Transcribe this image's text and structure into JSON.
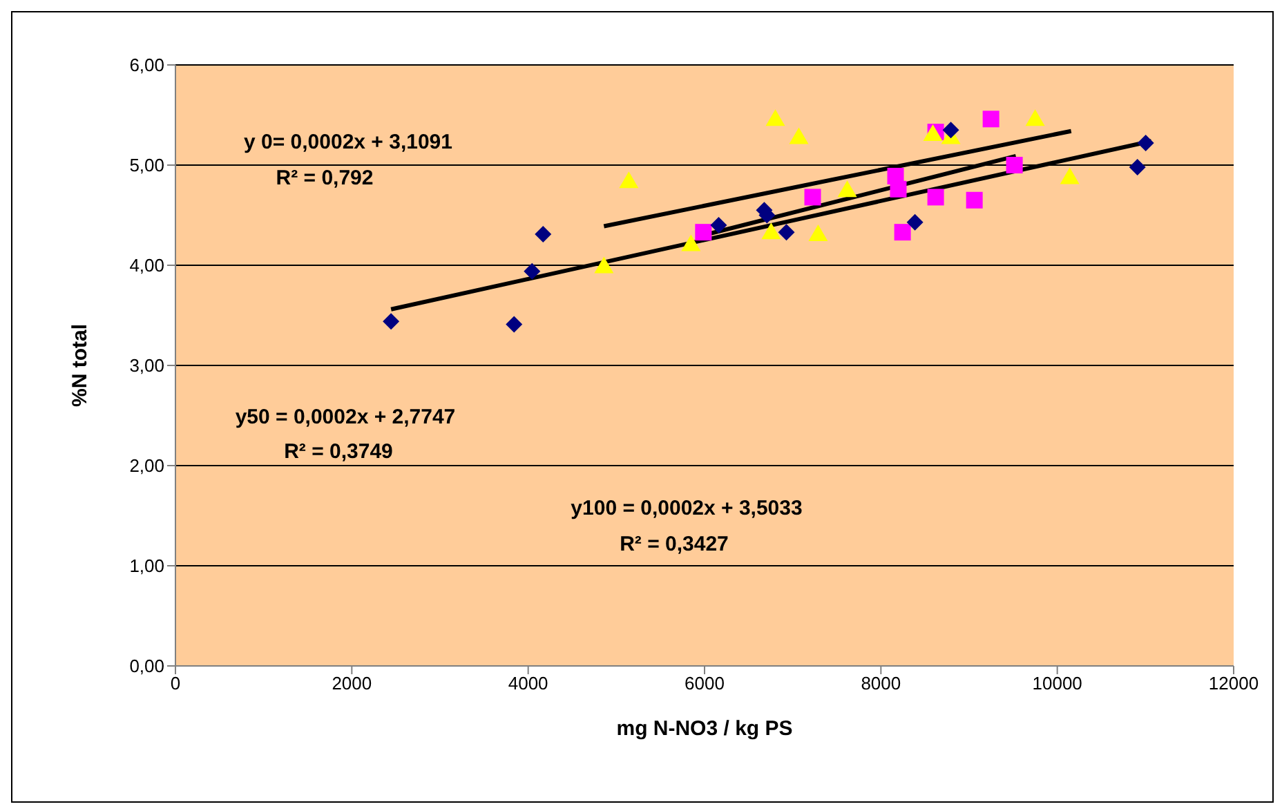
{
  "chart_data": {
    "type": "scatter",
    "xlabel": "mg N-NO3 / kg PS",
    "ylabel": "%N total",
    "xlim": [
      0,
      12000
    ],
    "xticks": [
      0,
      2000,
      4000,
      6000,
      8000,
      10000,
      12000
    ],
    "ylim": [
      0,
      6
    ],
    "yticks": [
      {
        "value": 0,
        "label": "0,00"
      },
      {
        "value": 1,
        "label": "1,00"
      },
      {
        "value": 2,
        "label": "2,00"
      },
      {
        "value": 3,
        "label": "3,00"
      },
      {
        "value": 4,
        "label": "4,00"
      },
      {
        "value": 5,
        "label": "5,00"
      },
      {
        "value": 6,
        "label": "6,00"
      }
    ],
    "grid": "y",
    "annotations": [
      "y 0= 0,0002x + 3,1091",
      "R² = 0,792",
      "y50 = 0,0002x + 2,7747",
      "R² = 0,3749",
      "y100 = 0,0002x + 3,5033",
      "R² = 0,3427"
    ],
    "series": [
      {
        "color": "#000080",
        "marker": "diamond",
        "x": [
          2445,
          3840,
          4044,
          4169,
          6160,
          6677,
          6708,
          6928,
          8386,
          8793,
          10909,
          11003
        ],
        "values": [
          3.44,
          3.41,
          3.94,
          4.31,
          4.4,
          4.55,
          4.5,
          4.33,
          4.43,
          5.35,
          4.98,
          5.22
        ]
      },
      {
        "color": "#ffff00",
        "marker": "triangle",
        "x": [
          4859,
          5141,
          5846,
          6803,
          6755,
          7069,
          7288,
          7618,
          8589,
          8793,
          9749,
          10141
        ],
        "values": [
          3.99,
          4.84,
          4.21,
          5.46,
          4.33,
          5.28,
          4.31,
          4.75,
          5.31,
          5.28,
          5.46,
          4.88
        ]
      },
      {
        "color": "#ff00ff",
        "marker": "square",
        "x": [
          5987,
          7226,
          8166,
          8197,
          8245,
          8621,
          8621,
          9060,
          9248,
          9514
        ],
        "values": [
          4.33,
          4.68,
          4.89,
          4.76,
          4.33,
          4.68,
          5.33,
          4.65,
          5.46,
          5.0
        ]
      },
      {
        "type": "line",
        "color": "#000000",
        "marker": "none",
        "x": [
          4859,
          10157
        ],
        "values": [
          4.39,
          5.34
        ]
      },
      {
        "type": "line",
        "color": "#000000",
        "marker": "none",
        "x": [
          2445,
          11066
        ],
        "values": [
          3.56,
          5.24
        ]
      },
      {
        "type": "line",
        "color": "#000000",
        "marker": "none",
        "x": [
          5987,
          9530
        ],
        "values": [
          4.3,
          5.09
        ]
      }
    ]
  }
}
